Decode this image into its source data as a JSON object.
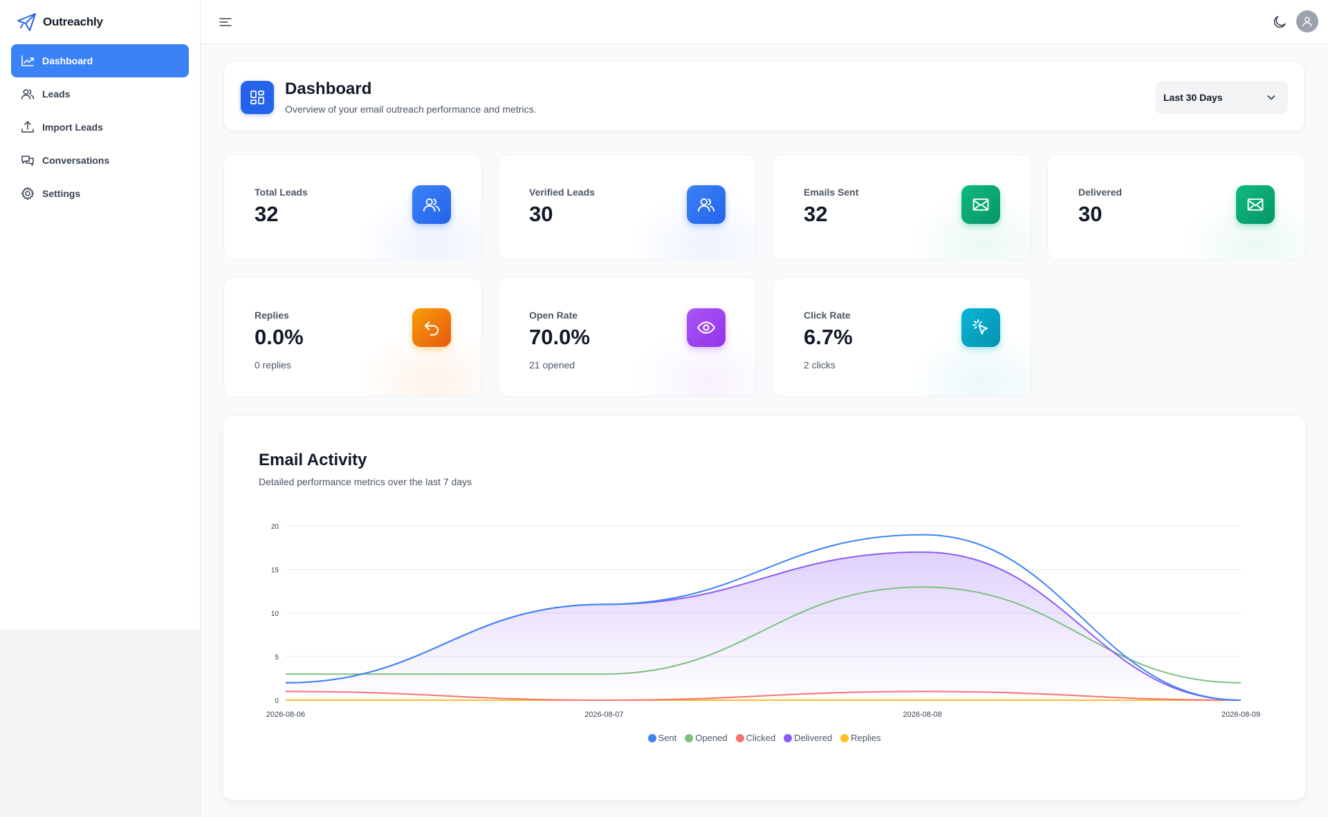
{
  "brand": {
    "name": "Outreachly"
  },
  "sidebar": {
    "items": [
      {
        "label": "Dashboard",
        "icon": "chart-line-icon",
        "active": true
      },
      {
        "label": "Leads",
        "icon": "users-icon"
      },
      {
        "label": "Import Leads",
        "icon": "upload-icon"
      },
      {
        "label": "Conversations",
        "icon": "chat-icon"
      },
      {
        "label": "Settings",
        "icon": "gear-icon"
      }
    ]
  },
  "header": {
    "title": "Dashboard",
    "subtitle": "Overview of your email outreach performance and metrics.",
    "range": "Last 30 Days"
  },
  "stats": [
    {
      "label": "Total Leads",
      "value": "32",
      "sub": "",
      "icon": "users-icon",
      "color": "#3b82f6",
      "color2": "#2563eb",
      "glow": "#dbe6fe"
    },
    {
      "label": "Verified Leads",
      "value": "30",
      "sub": "",
      "icon": "users-icon",
      "color": "#3b82f6",
      "color2": "#2563eb",
      "glow": "#dbe6fe"
    },
    {
      "label": "Emails Sent",
      "value": "32",
      "sub": "",
      "icon": "mail-icon",
      "color": "#10b981",
      "color2": "#059669",
      "glow": "#d6f3e8"
    },
    {
      "label": "Delivered",
      "value": "30",
      "sub": "",
      "icon": "mail-icon",
      "color": "#10b981",
      "color2": "#059669",
      "glow": "#d6f3e8"
    },
    {
      "label": "Replies",
      "value": "0.0%",
      "sub": "0 replies",
      "icon": "reply-icon",
      "color": "#f59e0b",
      "color2": "#ea580c",
      "glow": "#fde6d3"
    },
    {
      "label": "Open Rate",
      "value": "70.0%",
      "sub": "21 opened",
      "icon": "eye-icon",
      "color": "#a855f7",
      "color2": "#9333ea",
      "glow": "#efe3fd"
    },
    {
      "label": "Click Rate",
      "value": "6.7%",
      "sub": "2 clicks",
      "icon": "cursor-click-icon",
      "color": "#06b6d4",
      "color2": "#0891b2",
      "glow": "#d7f1f6"
    }
  ],
  "chart": {
    "title": "Email Activity",
    "subtitle": "Detailed performance metrics over the last 7 days"
  },
  "chart_data": {
    "type": "line",
    "x": [
      "2026-08-06",
      "2026-08-07",
      "2026-08-08",
      "2026-08-09"
    ],
    "ylim": [
      0,
      20
    ],
    "yticks": [
      0,
      5,
      10,
      15,
      20
    ],
    "grid": true,
    "legend": "bottom-center",
    "series": [
      {
        "name": "Sent",
        "values": [
          2,
          11,
          19,
          0
        ],
        "color": "#3b82f6",
        "fill": false
      },
      {
        "name": "Opened",
        "values": [
          3,
          3,
          13,
          2
        ],
        "color": "#7fbf7f",
        "fill": false
      },
      {
        "name": "Clicked",
        "values": [
          1,
          0,
          1,
          0
        ],
        "color": "#f87171",
        "fill": false
      },
      {
        "name": "Delivered",
        "values": [
          2,
          11,
          17,
          0
        ],
        "color": "#8b5cf6",
        "fill": true
      },
      {
        "name": "Replies",
        "values": [
          0,
          0,
          0,
          0
        ],
        "color": "#fbbf24",
        "fill": false
      }
    ]
  }
}
